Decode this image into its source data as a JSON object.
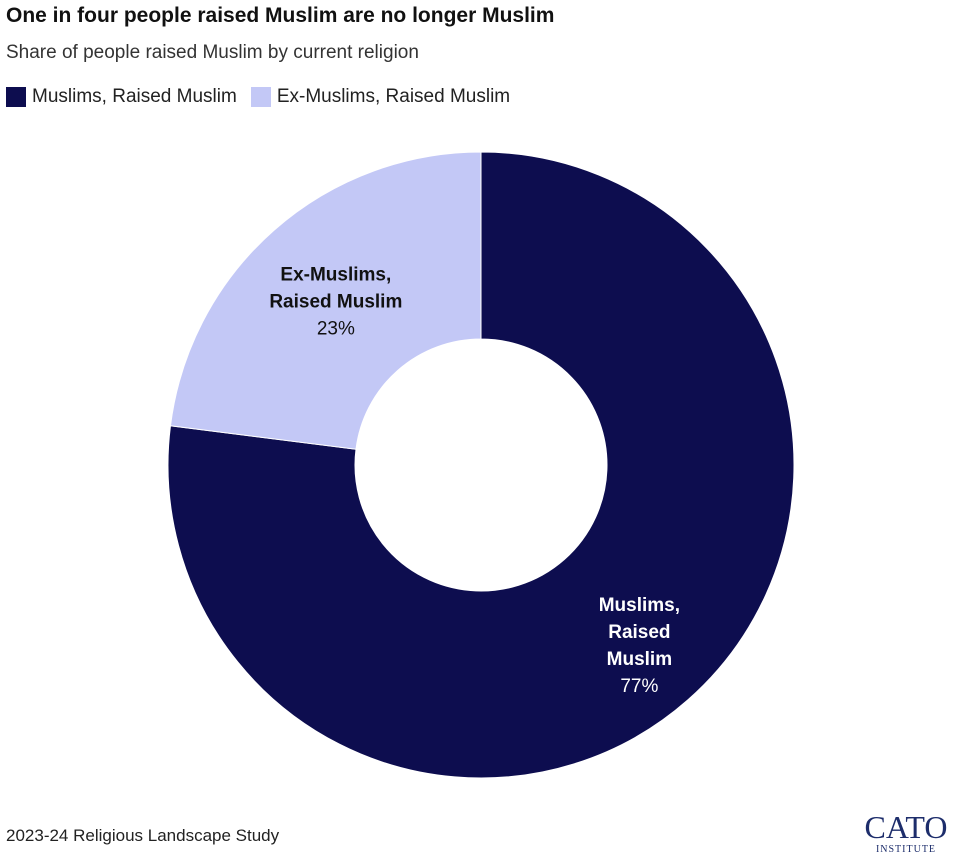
{
  "title": "One in four people raised Muslim are no longer Muslim",
  "subtitle": "Share of people raised Muslim by current religion",
  "source": "2023-24 Religious Landscape Study",
  "logo": {
    "text": "CATO",
    "subtext": "INSTITUTE"
  },
  "colors": {
    "muslims": "#0d0d4f",
    "ex_muslims": "#c3c8f6"
  },
  "chart_data": {
    "type": "pie",
    "style": "donut",
    "legend_position": "top-left",
    "slices": [
      {
        "name": "Muslims, Raised Muslim",
        "label_lines": [
          "Muslims,",
          "Raised",
          "Muslim"
        ],
        "value": 77,
        "value_label": "77%",
        "color": "#0d0d4f",
        "label_color": "#ffffff"
      },
      {
        "name": "Ex-Muslims, Raised Muslim",
        "label_lines": [
          "Ex-Muslims,",
          "Raised Muslim"
        ],
        "value": 23,
        "value_label": "23%",
        "color": "#c3c8f6",
        "label_color": "#111111"
      }
    ]
  }
}
